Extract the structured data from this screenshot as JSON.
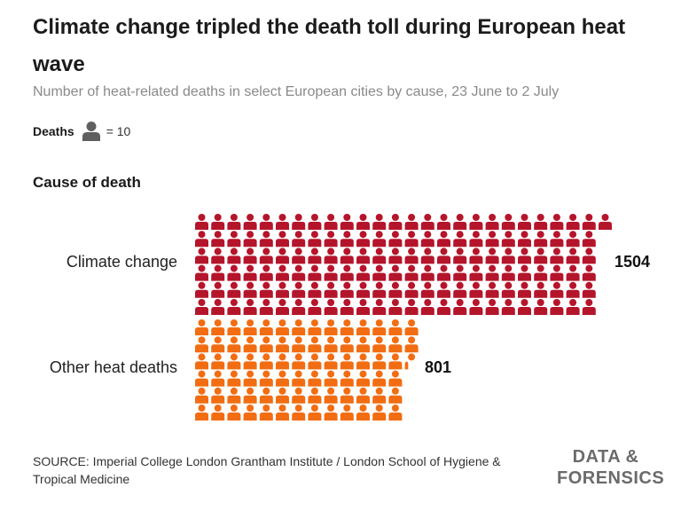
{
  "header": {
    "title": "Climate change tripled the death toll during European heat wave",
    "subtitle": "Number of heat-related deaths in select European cities by cause, 23 June to 2 July"
  },
  "legend": {
    "label": "Deaths",
    "unit_text": "= 10",
    "icon": "person-icon"
  },
  "section_label": "Cause of death",
  "chart_data": {
    "type": "bar",
    "subtype": "pictogram",
    "units_per_icon": 10,
    "categories": [
      "Climate change",
      "Other heat deaths"
    ],
    "values": [
      1504,
      801
    ],
    "value_labels": [
      "1504",
      "801"
    ],
    "colors": [
      "#b5152b",
      "#f26d12"
    ],
    "title": "Climate change tripled the death toll during European heat wave",
    "xlabel": "",
    "ylabel": "Cause of death"
  },
  "footer": {
    "source": "SOURCE: Imperial College London Grantham Institute / London School of Hygiene & Tropical Medicine",
    "brand_line1": "DATA &",
    "brand_line2": "FORENSICS"
  },
  "colors": {
    "legend_icon": "#5f5f5f",
    "brand": "#6b6b6b"
  }
}
